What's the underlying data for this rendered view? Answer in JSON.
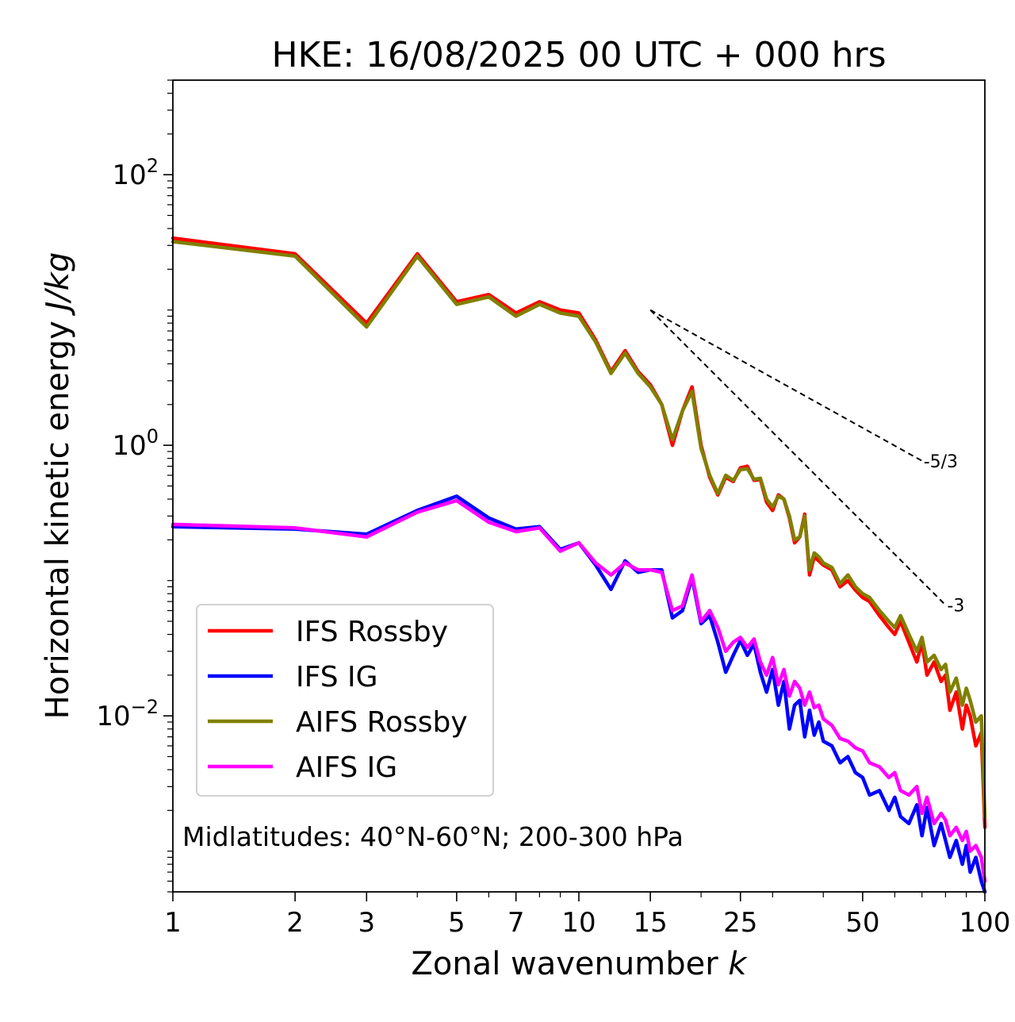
{
  "chart_data": {
    "type": "line",
    "title": "HKE: 16/08/2025 00 UTC + 000 hrs",
    "xlabel_main": "Zonal wavenumber ",
    "xlabel_sym": "k",
    "ylabel_main": "Horizontal kinetic energy ",
    "ylabel_sym": "J/kg",
    "xscale": "log",
    "yscale": "log",
    "xlim": [
      1,
      100
    ],
    "ylim": [
      0.0005,
      500
    ],
    "x_ticks": [
      {
        "value": 1,
        "label": "1"
      },
      {
        "value": 2,
        "label": "2"
      },
      {
        "value": 3,
        "label": "3"
      },
      {
        "value": 5,
        "label": "5"
      },
      {
        "value": 7,
        "label": "7"
      },
      {
        "value": 10,
        "label": "10"
      },
      {
        "value": 15,
        "label": "15"
      },
      {
        "value": 25,
        "label": "25"
      },
      {
        "value": 50,
        "label": "50"
      },
      {
        "value": 100,
        "label": "100"
      }
    ],
    "y_ticks": [
      {
        "value": 100,
        "base": "10",
        "exp": "2"
      },
      {
        "value": 1,
        "base": "10",
        "exp": "0"
      },
      {
        "value": 0.01,
        "base": "10",
        "exp": "−2"
      }
    ],
    "annotation": "Midlatitudes: 40°N-60°N; 200-300 hPa",
    "legend_position": "lower-left",
    "reference_slopes": [
      {
        "label": "-5/3",
        "slope": -1.6667,
        "x_start": 15,
        "x_end": 70,
        "y_start": 10.0
      },
      {
        "label": "-3",
        "slope": -3,
        "x_start": 15,
        "x_end": 80,
        "y_start": 10.0
      }
    ],
    "series": [
      {
        "name": "IFS Rossby",
        "color": "#ff0000",
        "x": [
          1,
          2,
          3,
          4,
          5,
          6,
          7,
          8,
          9,
          10,
          11,
          12,
          13,
          14,
          15,
          16,
          17,
          18,
          19,
          20,
          21,
          22,
          23,
          24,
          25,
          26,
          27,
          28,
          29,
          30,
          31,
          32,
          33,
          34,
          35,
          36,
          37,
          38,
          39,
          40,
          42,
          44,
          46,
          48,
          50,
          52,
          55,
          58,
          60,
          62,
          65,
          68,
          70,
          72,
          75,
          78,
          80,
          82,
          85,
          88,
          90,
          92,
          95,
          98,
          100
        ],
        "values": [
          34,
          26,
          8.0,
          26,
          11.5,
          13,
          9.5,
          11.5,
          10,
          9.5,
          6.0,
          3.5,
          5.0,
          3.5,
          2.8,
          2.0,
          1.0,
          1.8,
          2.7,
          1.0,
          0.58,
          0.43,
          0.58,
          0.54,
          0.68,
          0.7,
          0.55,
          0.56,
          0.38,
          0.33,
          0.43,
          0.4,
          0.29,
          0.19,
          0.21,
          0.31,
          0.11,
          0.15,
          0.14,
          0.13,
          0.12,
          0.09,
          0.1,
          0.085,
          0.075,
          0.07,
          0.055,
          0.045,
          0.04,
          0.05,
          0.035,
          0.025,
          0.035,
          0.02,
          0.025,
          0.018,
          0.02,
          0.011,
          0.015,
          0.008,
          0.012,
          0.01,
          0.006,
          0.0075,
          0.0015
        ]
      },
      {
        "name": "IFS IG",
        "color": "#0000ff",
        "x": [
          1,
          2,
          3,
          4,
          5,
          6,
          7,
          8,
          9,
          10,
          11,
          12,
          13,
          14,
          15,
          16,
          17,
          18,
          19,
          20,
          21,
          22,
          23,
          24,
          25,
          26,
          27,
          28,
          29,
          30,
          31,
          32,
          33,
          34,
          35,
          36,
          37,
          38,
          39,
          40,
          42,
          44,
          46,
          48,
          50,
          52,
          55,
          58,
          60,
          62,
          65,
          68,
          70,
          72,
          75,
          78,
          80,
          82,
          85,
          88,
          90,
          92,
          95,
          98,
          100
        ],
        "values": [
          0.25,
          0.24,
          0.22,
          0.33,
          0.42,
          0.29,
          0.24,
          0.25,
          0.17,
          0.19,
          0.13,
          0.086,
          0.14,
          0.115,
          0.12,
          0.12,
          0.053,
          0.06,
          0.105,
          0.048,
          0.055,
          0.035,
          0.021,
          0.028,
          0.036,
          0.028,
          0.034,
          0.021,
          0.015,
          0.022,
          0.012,
          0.018,
          0.008,
          0.012,
          0.013,
          0.007,
          0.011,
          0.0072,
          0.009,
          0.0065,
          0.006,
          0.0045,
          0.005,
          0.0038,
          0.0035,
          0.0026,
          0.0028,
          0.002,
          0.0025,
          0.0018,
          0.0016,
          0.0022,
          0.0013,
          0.0021,
          0.0011,
          0.0016,
          0.0012,
          0.0009,
          0.0012,
          0.0008,
          0.0011,
          0.0007,
          0.0009,
          0.0006,
          0.0004
        ]
      },
      {
        "name": "AIFS Rossby",
        "color": "#808000",
        "x": [
          1,
          2,
          3,
          4,
          5,
          6,
          7,
          8,
          9,
          10,
          11,
          12,
          13,
          14,
          15,
          16,
          17,
          18,
          19,
          20,
          21,
          22,
          23,
          24,
          25,
          26,
          27,
          28,
          29,
          30,
          31,
          32,
          33,
          34,
          35,
          36,
          37,
          38,
          39,
          40,
          42,
          44,
          46,
          48,
          50,
          52,
          55,
          58,
          60,
          62,
          65,
          68,
          70,
          72,
          75,
          78,
          80,
          82,
          85,
          88,
          90,
          92,
          95,
          98,
          100
        ],
        "values": [
          32,
          25,
          7.5,
          25,
          11,
          12.5,
          9.0,
          11,
          9.5,
          9.0,
          5.8,
          3.4,
          4.8,
          3.4,
          2.7,
          2.0,
          1.1,
          1.8,
          2.5,
          0.95,
          0.6,
          0.44,
          0.6,
          0.55,
          0.66,
          0.67,
          0.56,
          0.57,
          0.4,
          0.35,
          0.42,
          0.4,
          0.3,
          0.2,
          0.21,
          0.3,
          0.12,
          0.16,
          0.15,
          0.135,
          0.125,
          0.095,
          0.11,
          0.09,
          0.08,
          0.075,
          0.06,
          0.05,
          0.045,
          0.055,
          0.04,
          0.03,
          0.038,
          0.025,
          0.028,
          0.022,
          0.024,
          0.015,
          0.019,
          0.012,
          0.016,
          0.013,
          0.009,
          0.01,
          0.0018
        ]
      },
      {
        "name": "AIFS IG",
        "color": "#ff00ff",
        "x": [
          1,
          2,
          3,
          4,
          5,
          6,
          7,
          8,
          9,
          10,
          11,
          12,
          13,
          14,
          15,
          16,
          17,
          18,
          19,
          20,
          21,
          22,
          23,
          24,
          25,
          26,
          27,
          28,
          29,
          30,
          31,
          32,
          33,
          34,
          35,
          36,
          37,
          38,
          39,
          40,
          42,
          44,
          46,
          48,
          50,
          52,
          55,
          58,
          60,
          62,
          65,
          68,
          70,
          72,
          75,
          78,
          80,
          82,
          85,
          88,
          90,
          92,
          95,
          98,
          100
        ],
        "values": [
          0.26,
          0.245,
          0.21,
          0.32,
          0.39,
          0.27,
          0.23,
          0.245,
          0.165,
          0.19,
          0.135,
          0.11,
          0.135,
          0.12,
          0.12,
          0.115,
          0.06,
          0.065,
          0.11,
          0.05,
          0.06,
          0.045,
          0.03,
          0.035,
          0.038,
          0.032,
          0.037,
          0.025,
          0.02,
          0.027,
          0.017,
          0.022,
          0.014,
          0.018,
          0.016,
          0.012,
          0.015,
          0.0115,
          0.012,
          0.0095,
          0.0085,
          0.0068,
          0.0065,
          0.0058,
          0.0055,
          0.0045,
          0.0042,
          0.0035,
          0.0038,
          0.0028,
          0.0026,
          0.003,
          0.0019,
          0.0025,
          0.0016,
          0.0019,
          0.0017,
          0.0013,
          0.0015,
          0.0012,
          0.0014,
          0.001,
          0.0011,
          0.0009,
          0.0006
        ]
      }
    ]
  }
}
